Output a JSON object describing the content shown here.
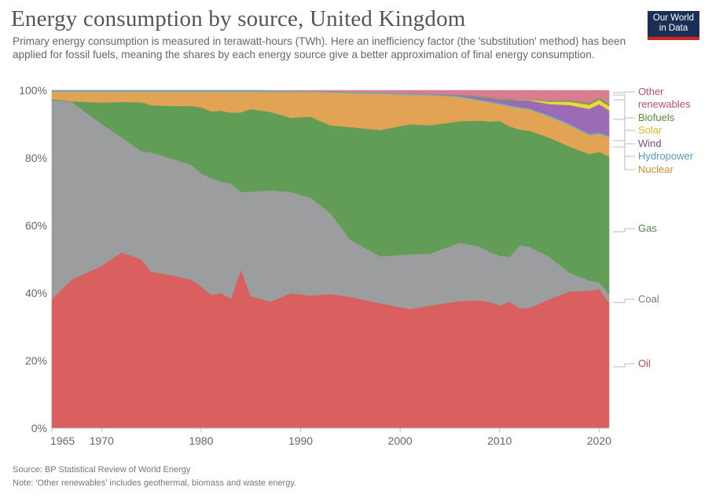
{
  "header": {
    "title": "Energy consumption by source, United Kingdom",
    "subtitle": "Primary energy consumption is measured in terawatt-hours (TWh). Here an inefficiency factor (the 'substitution' method) has been applied for fossil fuels, meaning the shares by each energy source give a better approximation of final energy consumption.",
    "logo_line1": "Our World",
    "logo_line2": "in Data"
  },
  "footer": {
    "source": "Source: BP Statistical Review of World Energy",
    "note": "Note: 'Other renewables' includes geothermal, biomass and waste energy."
  },
  "colors": {
    "logo_bg": "#1a2f55",
    "logo_bar": "#ce261e"
  },
  "chart_data": {
    "type": "area",
    "stacked": "percent",
    "title": "Energy consumption by source, United Kingdom",
    "xlabel": "",
    "ylabel": "",
    "ylim": [
      0,
      100
    ],
    "xlim": [
      1965,
      2021
    ],
    "y_ticks": [
      "0%",
      "20%",
      "40%",
      "60%",
      "80%",
      "100%"
    ],
    "x_ticks": [
      "1965",
      "1970",
      "1980",
      "1990",
      "2000",
      "2010",
      "2020"
    ],
    "x_tick_values": [
      1965,
      1970,
      1980,
      1990,
      2000,
      2010,
      2020
    ],
    "grid": true,
    "legend_placement": "right (inline labels)",
    "x": [
      1965,
      1967,
      1970,
      1972,
      1974,
      1975,
      1977,
      1979,
      1980,
      1981,
      1982,
      1983,
      1984,
      1985,
      1987,
      1989,
      1991,
      1993,
      1995,
      1998,
      2001,
      2003,
      2006,
      2008,
      2009,
      2010,
      2011,
      2012,
      2013,
      2015,
      2017,
      2019,
      2020,
      2021
    ],
    "series": [
      {
        "name": "Oil",
        "color": "#d9605f",
        "values": [
          38.4,
          44,
          48,
          52,
          50,
          46.5,
          45.3,
          44,
          42,
          39.5,
          40,
          38.4,
          47,
          39,
          37.5,
          40,
          39.3,
          39.8,
          39,
          37.2,
          35.6,
          36.5,
          38,
          37.8,
          37.7,
          36.7,
          38,
          36.3,
          36.3,
          39.5,
          41.2,
          41,
          41.2,
          36
        ]
      },
      {
        "name": "Coal",
        "color": "#9b9d9f",
        "values": [
          59,
          52.5,
          42,
          34,
          32,
          35.5,
          34.5,
          34,
          33.5,
          34.5,
          33,
          34,
          23,
          31,
          33,
          30,
          29,
          24,
          17,
          14,
          16.4,
          15.5,
          17.5,
          16,
          15,
          14.8,
          13.5,
          19,
          18.5,
          13,
          5.8,
          3,
          2,
          2.5
        ]
      },
      {
        "name": "Gas",
        "color": "#629d57",
        "values": [
          0.3,
          0.2,
          6.3,
          10.5,
          14.5,
          14,
          15.6,
          17.4,
          19.5,
          19.8,
          21,
          21,
          23.5,
          24.5,
          23.2,
          22,
          24,
          26,
          33.5,
          37.6,
          38.8,
          38.2,
          36.3,
          37.3,
          39,
          40.3,
          39.3,
          35,
          35,
          36.5,
          38,
          37.7,
          38.6,
          39.5
        ]
      },
      {
        "name": "Nuclear",
        "color": "#e3a354",
        "values": [
          2.2,
          2.8,
          3.2,
          3.0,
          3.1,
          4.0,
          4.2,
          4.2,
          4.6,
          5.8,
          5.6,
          6.2,
          6.1,
          5.1,
          5.9,
          7.6,
          7.3,
          9.8,
          10.1,
          10.8,
          8.8,
          9.0,
          7.2,
          5.9,
          5.8,
          5.0,
          6.0,
          6.5,
          6.5,
          6.5,
          6.5,
          5.7,
          5.3,
          5.6
        ]
      },
      {
        "name": "Hydropower",
        "color": "#5eacd0",
        "values": [
          0.4,
          0.4,
          0.4,
          0.4,
          0.4,
          0.4,
          0.4,
          0.4,
          0.4,
          0.4,
          0.4,
          0.4,
          0.4,
          0.4,
          0.4,
          0.4,
          0.3,
          0.3,
          0.3,
          0.3,
          0.3,
          0.3,
          0.3,
          0.3,
          0.3,
          0.3,
          0.4,
          0.3,
          0.3,
          0.4,
          0.4,
          0.4,
          0.5,
          0.4
        ]
      },
      {
        "name": "Wind",
        "color": "#9c6bb5",
        "values": [
          0,
          0,
          0,
          0,
          0,
          0,
          0,
          0,
          0,
          0,
          0,
          0,
          0,
          0,
          0,
          0,
          0,
          0,
          0,
          0,
          0.1,
          0.1,
          0.3,
          0.7,
          0.9,
          1.0,
          1.5,
          2.0,
          2.4,
          3.4,
          5.6,
          7.4,
          8.3,
          7.3
        ]
      },
      {
        "name": "Solar",
        "color": "#f2d43d",
        "values": [
          0,
          0,
          0,
          0,
          0,
          0,
          0,
          0,
          0,
          0,
          0,
          0,
          0,
          0,
          0,
          0,
          0,
          0,
          0,
          0,
          0,
          0,
          0,
          0,
          0,
          0,
          0,
          0.1,
          0.2,
          0.7,
          1.0,
          1.2,
          1.3,
          1.2
        ]
      },
      {
        "name": "Biofuels",
        "color": "#7f9c58",
        "values": [
          0,
          0,
          0,
          0,
          0,
          0,
          0,
          0,
          0,
          0,
          0,
          0,
          0,
          0,
          0,
          0,
          0,
          0,
          0,
          0,
          0,
          0,
          0.1,
          0.3,
          0.3,
          0.4,
          0.3,
          0.2,
          0.2,
          0.4,
          0.5,
          0.7,
          0.7,
          0.7
        ]
      },
      {
        "name": "Other renewables",
        "color": "#d97e92",
        "values": [
          0,
          0,
          0,
          0,
          0,
          0,
          0,
          0,
          0,
          0,
          0,
          0,
          0,
          0,
          0.1,
          0.1,
          0.2,
          0.3,
          0.5,
          0.7,
          0.9,
          1.0,
          1.3,
          1.7,
          2.0,
          2.4,
          2.6,
          2.7,
          2.6,
          3.1,
          2.9,
          3.6,
          2.1,
          3.8
        ]
      }
    ],
    "legend": [
      {
        "label": "Other renewables",
        "color": "#c24c6e"
      },
      {
        "label": "Biofuels",
        "color": "#5a8a3d"
      },
      {
        "label": "Solar",
        "color": "#d9b92b"
      },
      {
        "label": "Wind",
        "color": "#7b4a93"
      },
      {
        "label": "Hydropower",
        "color": "#4f9bc2"
      },
      {
        "label": "Nuclear",
        "color": "#d58a35"
      },
      {
        "label": "Gas",
        "color": "#4e8a45"
      },
      {
        "label": "Coal",
        "color": "#777777"
      },
      {
        "label": "Oil",
        "color": "#c24c4c"
      }
    ]
  }
}
